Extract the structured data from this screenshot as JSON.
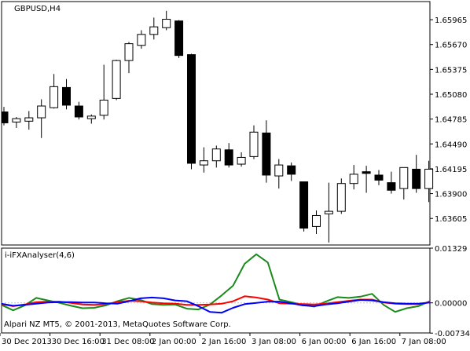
{
  "window": {
    "title": "GBPUSD,H4",
    "indicator_title": "i-iFXAnalyser(4,6)",
    "copyright": "Alpari NZ MT5, © 2001-2013, MetaQuotes Software Corp."
  },
  "colors": {
    "background": "#ffffff",
    "frame": "#000000",
    "bull_fill": "#ffffff",
    "bear_fill": "#000000",
    "candle_outline": "#000000",
    "zero_line": "#c0c0c0",
    "series_green": "#1a8a1a",
    "series_red": "#ff0000",
    "series_blue": "#0000ff"
  },
  "chart_data": [
    {
      "type": "candlestick",
      "title": "GBPUSD,H4",
      "ylim": [
        1.6329,
        1.6618
      ],
      "y_ticks": [
        "1.65965",
        "1.65670",
        "1.65375",
        "1.65080",
        "1.64785",
        "1.64490",
        "1.64195",
        "1.63900",
        "1.63605"
      ],
      "y_tick_values": [
        1.65965,
        1.6567,
        1.65375,
        1.6508,
        1.64785,
        1.6449,
        1.64195,
        1.639,
        1.63605
      ],
      "x_ticks": [
        "30 Dec 2013",
        "30 Dec 16:00",
        "31 Dec 08:00",
        "2 Jan 00:00",
        "2 Jan 16:00",
        "3 Jan 08:00",
        "6 Jan 00:00",
        "6 Jan 16:00",
        "7 Jan 08:00"
      ],
      "x_tick_bar_index": [
        0,
        4,
        8,
        12,
        16,
        20,
        24,
        28,
        32
      ],
      "candles": [
        {
          "o": 1.6487,
          "h": 1.6493,
          "l": 1.6471,
          "c": 1.6474
        },
        {
          "o": 1.6475,
          "h": 1.6481,
          "l": 1.6468,
          "c": 1.6479
        },
        {
          "o": 1.6476,
          "h": 1.6488,
          "l": 1.6466,
          "c": 1.648
        },
        {
          "o": 1.648,
          "h": 1.6502,
          "l": 1.6456,
          "c": 1.6494
        },
        {
          "o": 1.6492,
          "h": 1.6532,
          "l": 1.6491,
          "c": 1.6517
        },
        {
          "o": 1.6516,
          "h": 1.6526,
          "l": 1.649,
          "c": 1.6495
        },
        {
          "o": 1.6494,
          "h": 1.6499,
          "l": 1.6478,
          "c": 1.6481
        },
        {
          "o": 1.6479,
          "h": 1.6484,
          "l": 1.6473,
          "c": 1.6482
        },
        {
          "o": 1.6483,
          "h": 1.6543,
          "l": 1.6478,
          "c": 1.6501
        },
        {
          "o": 1.6503,
          "h": 1.6549,
          "l": 1.6501,
          "c": 1.6548
        },
        {
          "o": 1.6548,
          "h": 1.657,
          "l": 1.6533,
          "c": 1.6568
        },
        {
          "o": 1.6566,
          "h": 1.6584,
          "l": 1.6562,
          "c": 1.6579
        },
        {
          "o": 1.6579,
          "h": 1.6599,
          "l": 1.6573,
          "c": 1.6588
        },
        {
          "o": 1.6587,
          "h": 1.6607,
          "l": 1.6584,
          "c": 1.6597
        },
        {
          "o": 1.6595,
          "h": 1.6596,
          "l": 1.6551,
          "c": 1.6554
        },
        {
          "o": 1.6555,
          "h": 1.6556,
          "l": 1.6419,
          "c": 1.6426
        },
        {
          "o": 1.6424,
          "h": 1.6445,
          "l": 1.6415,
          "c": 1.6429
        },
        {
          "o": 1.6429,
          "h": 1.6447,
          "l": 1.6421,
          "c": 1.6443
        },
        {
          "o": 1.6442,
          "h": 1.645,
          "l": 1.6421,
          "c": 1.6424
        },
        {
          "o": 1.6425,
          "h": 1.6439,
          "l": 1.6422,
          "c": 1.6433
        },
        {
          "o": 1.6434,
          "h": 1.6471,
          "l": 1.6431,
          "c": 1.6463
        },
        {
          "o": 1.6462,
          "h": 1.6477,
          "l": 1.6403,
          "c": 1.6412
        },
        {
          "o": 1.6411,
          "h": 1.6431,
          "l": 1.6396,
          "c": 1.6424
        },
        {
          "o": 1.6423,
          "h": 1.6427,
          "l": 1.6405,
          "c": 1.6413
        },
        {
          "o": 1.6404,
          "h": 1.6404,
          "l": 1.6345,
          "c": 1.6349
        },
        {
          "o": 1.6351,
          "h": 1.637,
          "l": 1.6342,
          "c": 1.6364
        },
        {
          "o": 1.6366,
          "h": 1.6403,
          "l": 1.6332,
          "c": 1.6369
        },
        {
          "o": 1.6369,
          "h": 1.6408,
          "l": 1.6366,
          "c": 1.6402
        },
        {
          "o": 1.6402,
          "h": 1.6424,
          "l": 1.6395,
          "c": 1.6413
        },
        {
          "o": 1.6416,
          "h": 1.6423,
          "l": 1.6391,
          "c": 1.6414
        },
        {
          "o": 1.6412,
          "h": 1.6418,
          "l": 1.64,
          "c": 1.6406
        },
        {
          "o": 1.6403,
          "h": 1.6416,
          "l": 1.639,
          "c": 1.6394
        },
        {
          "o": 1.6396,
          "h": 1.6421,
          "l": 1.6383,
          "c": 1.6421
        },
        {
          "o": 1.6419,
          "h": 1.6436,
          "l": 1.6391,
          "c": 1.6396
        },
        {
          "o": 1.6396,
          "h": 1.6429,
          "l": 1.638,
          "c": 1.6419
        }
      ]
    },
    {
      "type": "line",
      "title": "i-iFXAnalyser(4,6)",
      "ylim": [
        -0.0073,
        0.01329
      ],
      "y_ticks": [
        "0.01329",
        "0.00000",
        "-0.00734"
      ],
      "y_tick_values": [
        0.01329,
        0.0,
        -0.00734
      ],
      "zero_line": true,
      "series": [
        {
          "color": "#1a8a1a",
          "values": [
            -0.0005,
            -0.0018,
            -0.0006,
            0.0012,
            0.0006,
            0.0,
            -0.0007,
            -0.0013,
            -0.0012,
            -0.0006,
            0.0004,
            0.0012,
            0.0007,
            -0.0003,
            -0.0005,
            -0.0004,
            -0.0014,
            -0.0016,
            -0.0004,
            0.0018,
            0.0042,
            0.0095,
            0.0118,
            0.0098,
            0.0008,
            0.0002,
            -0.0005,
            -0.0009,
            0.0003,
            0.0014,
            0.0012,
            0.0015,
            0.0022,
            -0.0005,
            -0.0022,
            -0.0013,
            -0.0008,
            0.0004
          ]
        },
        {
          "color": "#ff0000",
          "values": [
            -0.0003,
            -0.0008,
            -0.0004,
            0.0002,
            0.0003,
            0.0003,
            0.0,
            -0.0004,
            -0.0005,
            -0.0003,
            0.0002,
            0.0005,
            0.0004,
            0.0001,
            -0.0001,
            -0.0002,
            -0.0005,
            -0.0005,
            -0.0004,
            -0.0002,
            0.0004,
            0.0016,
            0.0013,
            0.0008,
            -0.0001,
            -0.0002,
            -0.0003,
            -0.0004,
            -0.0002,
            0.0002,
            0.0005,
            0.0008,
            0.0008,
            0.0001,
            -0.0002,
            -0.0003,
            -0.0003,
            0.0002
          ]
        },
        {
          "color": "#0000ff",
          "values": [
            -0.0002,
            -0.0007,
            -0.0005,
            -0.0002,
            0.0001,
            0.0002,
            0.0002,
            0.0001,
            0.0001,
            -0.0001,
            -0.0002,
            0.0004,
            0.0011,
            0.0013,
            0.0011,
            0.0006,
            0.0004,
            -0.0008,
            -0.0022,
            -0.0024,
            -0.0012,
            -0.0003,
            0.0,
            0.0003,
            0.0003,
            -0.0001,
            -0.0006,
            -0.0008,
            -0.0004,
            -0.0001,
            0.0003,
            0.0007,
            0.0006,
            0.0002,
            -0.0001,
            -0.0002,
            -0.0002,
            0.0001
          ]
        }
      ]
    }
  ]
}
